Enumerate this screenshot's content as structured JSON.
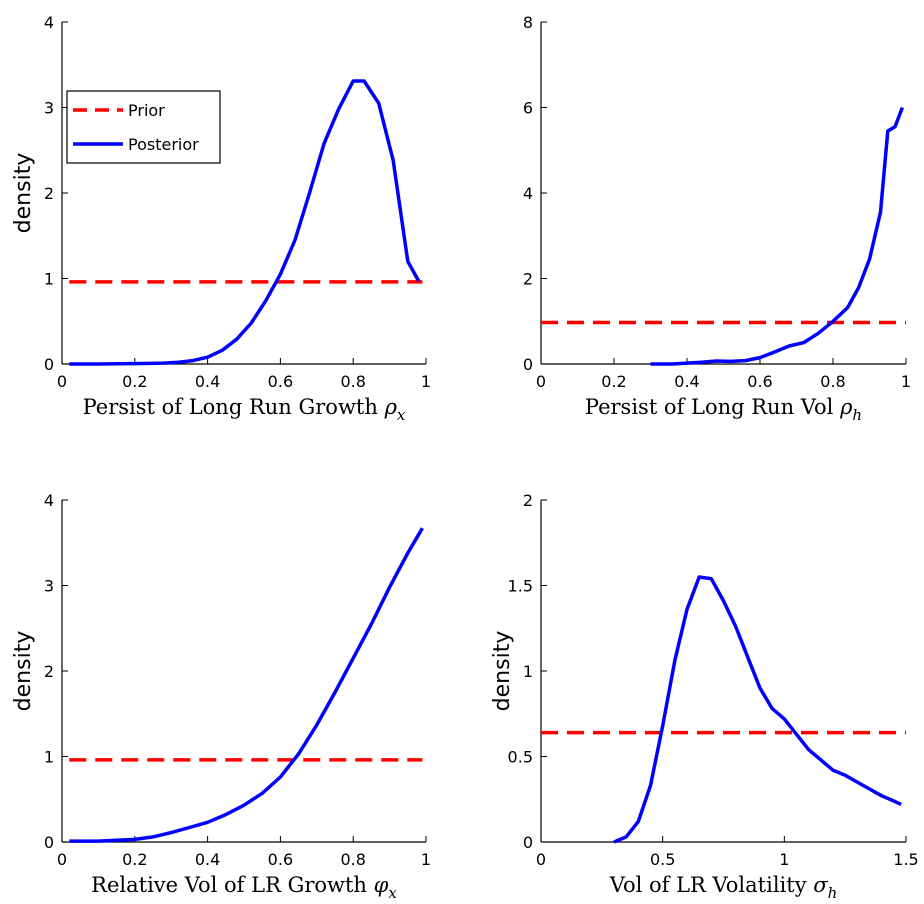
{
  "colors": {
    "prior": "#ff0000",
    "posterior": "#0000ff",
    "axes": "#000000"
  },
  "chart_data": [
    {
      "type": "line",
      "xlim": [
        0,
        1
      ],
      "ylim": [
        0,
        4
      ],
      "xticks": [
        "0",
        "0.2",
        "0.4",
        "0.6",
        "0.8",
        "1"
      ],
      "yticks": [
        "0",
        "1",
        "2",
        "3",
        "4"
      ],
      "xticks_values": [
        0,
        0.2,
        0.4,
        0.6,
        0.8,
        1
      ],
      "yticks_values": [
        0,
        1,
        2,
        3,
        4
      ],
      "xlabel_text": "Persist of Long Run Growth ",
      "xlabel_symbol": "ρ",
      "xlabel_sub": "x",
      "ylabel": "density",
      "legend": {
        "position": "top-left",
        "entries": [
          "Prior",
          "Posterior"
        ]
      },
      "series": [
        {
          "name": "Prior",
          "style": "dashed",
          "x": [
            0.02,
            0.99
          ],
          "y": [
            0.96,
            0.96
          ]
        },
        {
          "name": "Posterior",
          "style": "solid",
          "x": [
            0.02,
            0.1,
            0.2,
            0.28,
            0.32,
            0.36,
            0.4,
            0.44,
            0.48,
            0.52,
            0.56,
            0.6,
            0.64,
            0.68,
            0.72,
            0.76,
            0.8,
            0.83,
            0.87,
            0.91,
            0.95,
            0.98
          ],
          "y": [
            0.0,
            0.0,
            0.005,
            0.01,
            0.02,
            0.04,
            0.08,
            0.16,
            0.29,
            0.48,
            0.74,
            1.05,
            1.45,
            2.0,
            2.58,
            2.98,
            3.31,
            3.31,
            3.05,
            2.38,
            1.2,
            0.97
          ]
        }
      ]
    },
    {
      "type": "line",
      "xlim": [
        0,
        1
      ],
      "ylim": [
        0,
        8
      ],
      "xticks": [
        "0",
        "0.2",
        "0.4",
        "0.6",
        "0.8",
        "1"
      ],
      "yticks": [
        "0",
        "2",
        "4",
        "6",
        "8"
      ],
      "xticks_values": [
        0,
        0.2,
        0.4,
        0.6,
        0.8,
        1
      ],
      "yticks_values": [
        0,
        2,
        4,
        6,
        8
      ],
      "xlabel_text": "Persist of Long Run Vol ",
      "xlabel_symbol": "ρ",
      "xlabel_sub": "h",
      "ylabel": "",
      "series": [
        {
          "name": "Prior",
          "style": "dashed",
          "x": [
            0.0,
            1.0
          ],
          "y": [
            0.97,
            0.97
          ]
        },
        {
          "name": "Posterior",
          "style": "solid",
          "x": [
            0.3,
            0.36,
            0.4,
            0.44,
            0.48,
            0.52,
            0.56,
            0.6,
            0.64,
            0.68,
            0.72,
            0.76,
            0.8,
            0.84,
            0.87,
            0.9,
            0.93,
            0.95,
            0.97,
            0.99
          ],
          "y": [
            0.0,
            0.0,
            0.02,
            0.04,
            0.07,
            0.06,
            0.08,
            0.15,
            0.28,
            0.42,
            0.5,
            0.72,
            1.0,
            1.32,
            1.78,
            2.45,
            3.55,
            5.45,
            5.55,
            6.0
          ]
        }
      ]
    },
    {
      "type": "line",
      "xlim": [
        0,
        1
      ],
      "ylim": [
        0,
        4
      ],
      "xticks": [
        "0",
        "0.2",
        "0.4",
        "0.6",
        "0.8",
        "1"
      ],
      "yticks": [
        "0",
        "1",
        "2",
        "3",
        "4"
      ],
      "xticks_values": [
        0,
        0.2,
        0.4,
        0.6,
        0.8,
        1
      ],
      "yticks_values": [
        0,
        1,
        2,
        3,
        4
      ],
      "xlabel_text": "Relative Vol of LR Growth ",
      "xlabel_symbol": "φ",
      "xlabel_sub": "x",
      "ylabel": "density",
      "series": [
        {
          "name": "Prior",
          "style": "dashed",
          "x": [
            0.02,
            0.99
          ],
          "y": [
            0.96,
            0.96
          ]
        },
        {
          "name": "Posterior",
          "style": "solid",
          "x": [
            0.02,
            0.1,
            0.15,
            0.2,
            0.25,
            0.3,
            0.35,
            0.4,
            0.45,
            0.5,
            0.55,
            0.6,
            0.65,
            0.7,
            0.75,
            0.8,
            0.85,
            0.9,
            0.95,
            0.99
          ],
          "y": [
            0.01,
            0.01,
            0.02,
            0.03,
            0.06,
            0.11,
            0.17,
            0.23,
            0.32,
            0.43,
            0.57,
            0.76,
            1.03,
            1.37,
            1.75,
            2.15,
            2.55,
            2.98,
            3.38,
            3.67
          ]
        }
      ]
    },
    {
      "type": "line",
      "xlim": [
        0,
        1.5
      ],
      "ylim": [
        0,
        2
      ],
      "xticks": [
        "0",
        "0.5",
        "1",
        "1.5"
      ],
      "yticks": [
        "0",
        "0.5",
        "1",
        "1.5",
        "2"
      ],
      "xticks_values": [
        0,
        0.5,
        1,
        1.5
      ],
      "yticks_values": [
        0,
        0.5,
        1,
        1.5,
        2
      ],
      "xlabel_text": "Vol of LR Volatility ",
      "xlabel_symbol": "σ",
      "xlabel_sub": "h",
      "ylabel": "density",
      "series": [
        {
          "name": "Prior",
          "style": "dashed",
          "x": [
            0.0,
            1.5
          ],
          "y": [
            0.64,
            0.64
          ]
        },
        {
          "name": "Posterior",
          "style": "solid",
          "x": [
            0.3,
            0.35,
            0.4,
            0.45,
            0.5,
            0.55,
            0.6,
            0.65,
            0.7,
            0.75,
            0.8,
            0.85,
            0.9,
            0.95,
            1.0,
            1.05,
            1.1,
            1.15,
            1.2,
            1.25,
            1.3,
            1.35,
            1.4,
            1.45,
            1.48
          ],
          "y": [
            0.0,
            0.03,
            0.12,
            0.33,
            0.68,
            1.06,
            1.36,
            1.55,
            1.54,
            1.41,
            1.26,
            1.08,
            0.9,
            0.78,
            0.72,
            0.63,
            0.54,
            0.48,
            0.42,
            0.39,
            0.35,
            0.31,
            0.27,
            0.24,
            0.22
          ]
        }
      ]
    }
  ]
}
